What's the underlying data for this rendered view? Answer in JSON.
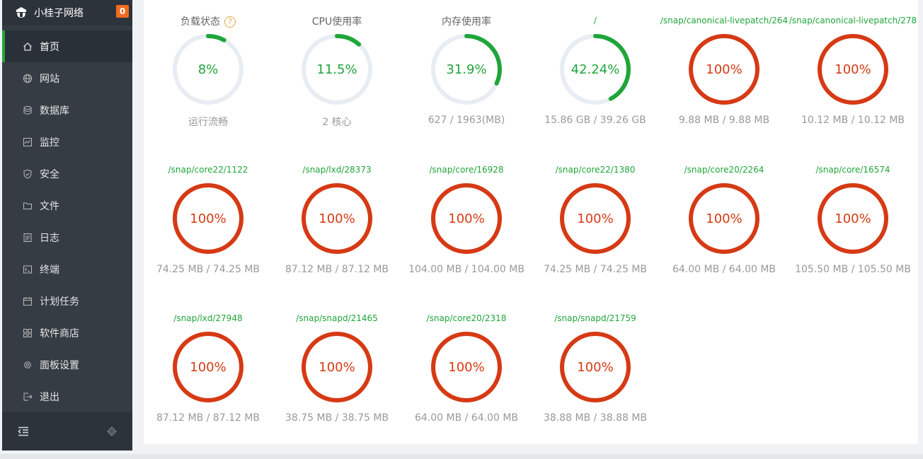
{
  "brand": {
    "title": "小桂子网络",
    "badge": "0"
  },
  "nav": [
    {
      "label": "首页",
      "icon": "home-icon",
      "active": true
    },
    {
      "label": "网站",
      "icon": "globe-icon"
    },
    {
      "label": "数据库",
      "icon": "database-icon"
    },
    {
      "label": "监控",
      "icon": "monitor-icon"
    },
    {
      "label": "安全",
      "icon": "shield-icon"
    },
    {
      "label": "文件",
      "icon": "folder-icon"
    },
    {
      "label": "日志",
      "icon": "log-icon"
    },
    {
      "label": "终端",
      "icon": "terminal-icon"
    },
    {
      "label": "计划任务",
      "icon": "calendar-icon"
    },
    {
      "label": "软件商店",
      "icon": "apps-icon"
    },
    {
      "label": "面板设置",
      "icon": "settings-icon"
    },
    {
      "label": "退出",
      "icon": "logout-icon"
    }
  ],
  "colors": {
    "ok": "#20a53a",
    "full": "#d63a14",
    "track": "#e8ecf3",
    "sidebar": "#353c44",
    "accent": "#20a53a"
  },
  "gauges": [
    {
      "label": "负载状态",
      "help": "?",
      "percent": 8,
      "text": "8%",
      "sub": "运行流畅",
      "status": "ok"
    },
    {
      "label": "CPU使用率",
      "percent": 11.5,
      "text": "11.5%",
      "sub": "2 核心",
      "status": "ok"
    },
    {
      "label": "内存使用率",
      "percent": 31.9,
      "text": "31.9%",
      "sub": "627 / 1963(MB)",
      "status": "ok"
    },
    {
      "label": "/",
      "mount": true,
      "percent": 42.24,
      "text": "42.24%",
      "sub": "15.86 GB / 39.26 GB",
      "status": "ok"
    },
    {
      "label": "/snap/canonical-livepatch/264",
      "mount": true,
      "percent": 100,
      "text": "100%",
      "sub": "9.88 MB / 9.88 MB",
      "status": "full"
    },
    {
      "label": "/snap/canonical-livepatch/278",
      "mount": true,
      "percent": 100,
      "text": "100%",
      "sub": "10.12 MB / 10.12 MB",
      "status": "full"
    },
    {
      "label": "/snap/core22/1122",
      "mount": true,
      "percent": 100,
      "text": "100%",
      "sub": "74.25 MB / 74.25 MB",
      "status": "full"
    },
    {
      "label": "/snap/lxd/28373",
      "mount": true,
      "percent": 100,
      "text": "100%",
      "sub": "87.12 MB / 87.12 MB",
      "status": "full"
    },
    {
      "label": "/snap/core/16928",
      "mount": true,
      "percent": 100,
      "text": "100%",
      "sub": "104.00 MB / 104.00 MB",
      "status": "full"
    },
    {
      "label": "/snap/core22/1380",
      "mount": true,
      "percent": 100,
      "text": "100%",
      "sub": "74.25 MB / 74.25 MB",
      "status": "full"
    },
    {
      "label": "/snap/core20/2264",
      "mount": true,
      "percent": 100,
      "text": "100%",
      "sub": "64.00 MB / 64.00 MB",
      "status": "full"
    },
    {
      "label": "/snap/core/16574",
      "mount": true,
      "percent": 100,
      "text": "100%",
      "sub": "105.50 MB / 105.50 MB",
      "status": "full"
    },
    {
      "label": "/snap/lxd/27948",
      "mount": true,
      "percent": 100,
      "text": "100%",
      "sub": "87.12 MB / 87.12 MB",
      "status": "full"
    },
    {
      "label": "/snap/snapd/21465",
      "mount": true,
      "percent": 100,
      "text": "100%",
      "sub": "38.75 MB / 38.75 MB",
      "status": "full"
    },
    {
      "label": "/snap/core20/2318",
      "mount": true,
      "percent": 100,
      "text": "100%",
      "sub": "64.00 MB / 64.00 MB",
      "status": "full"
    },
    {
      "label": "/snap/snapd/21759",
      "mount": true,
      "percent": 100,
      "text": "100%",
      "sub": "38.88 MB / 38.88 MB",
      "status": "full"
    }
  ],
  "footer": {
    "collapse_icon": "indent-icon",
    "settings_icon": "gear-icon"
  }
}
